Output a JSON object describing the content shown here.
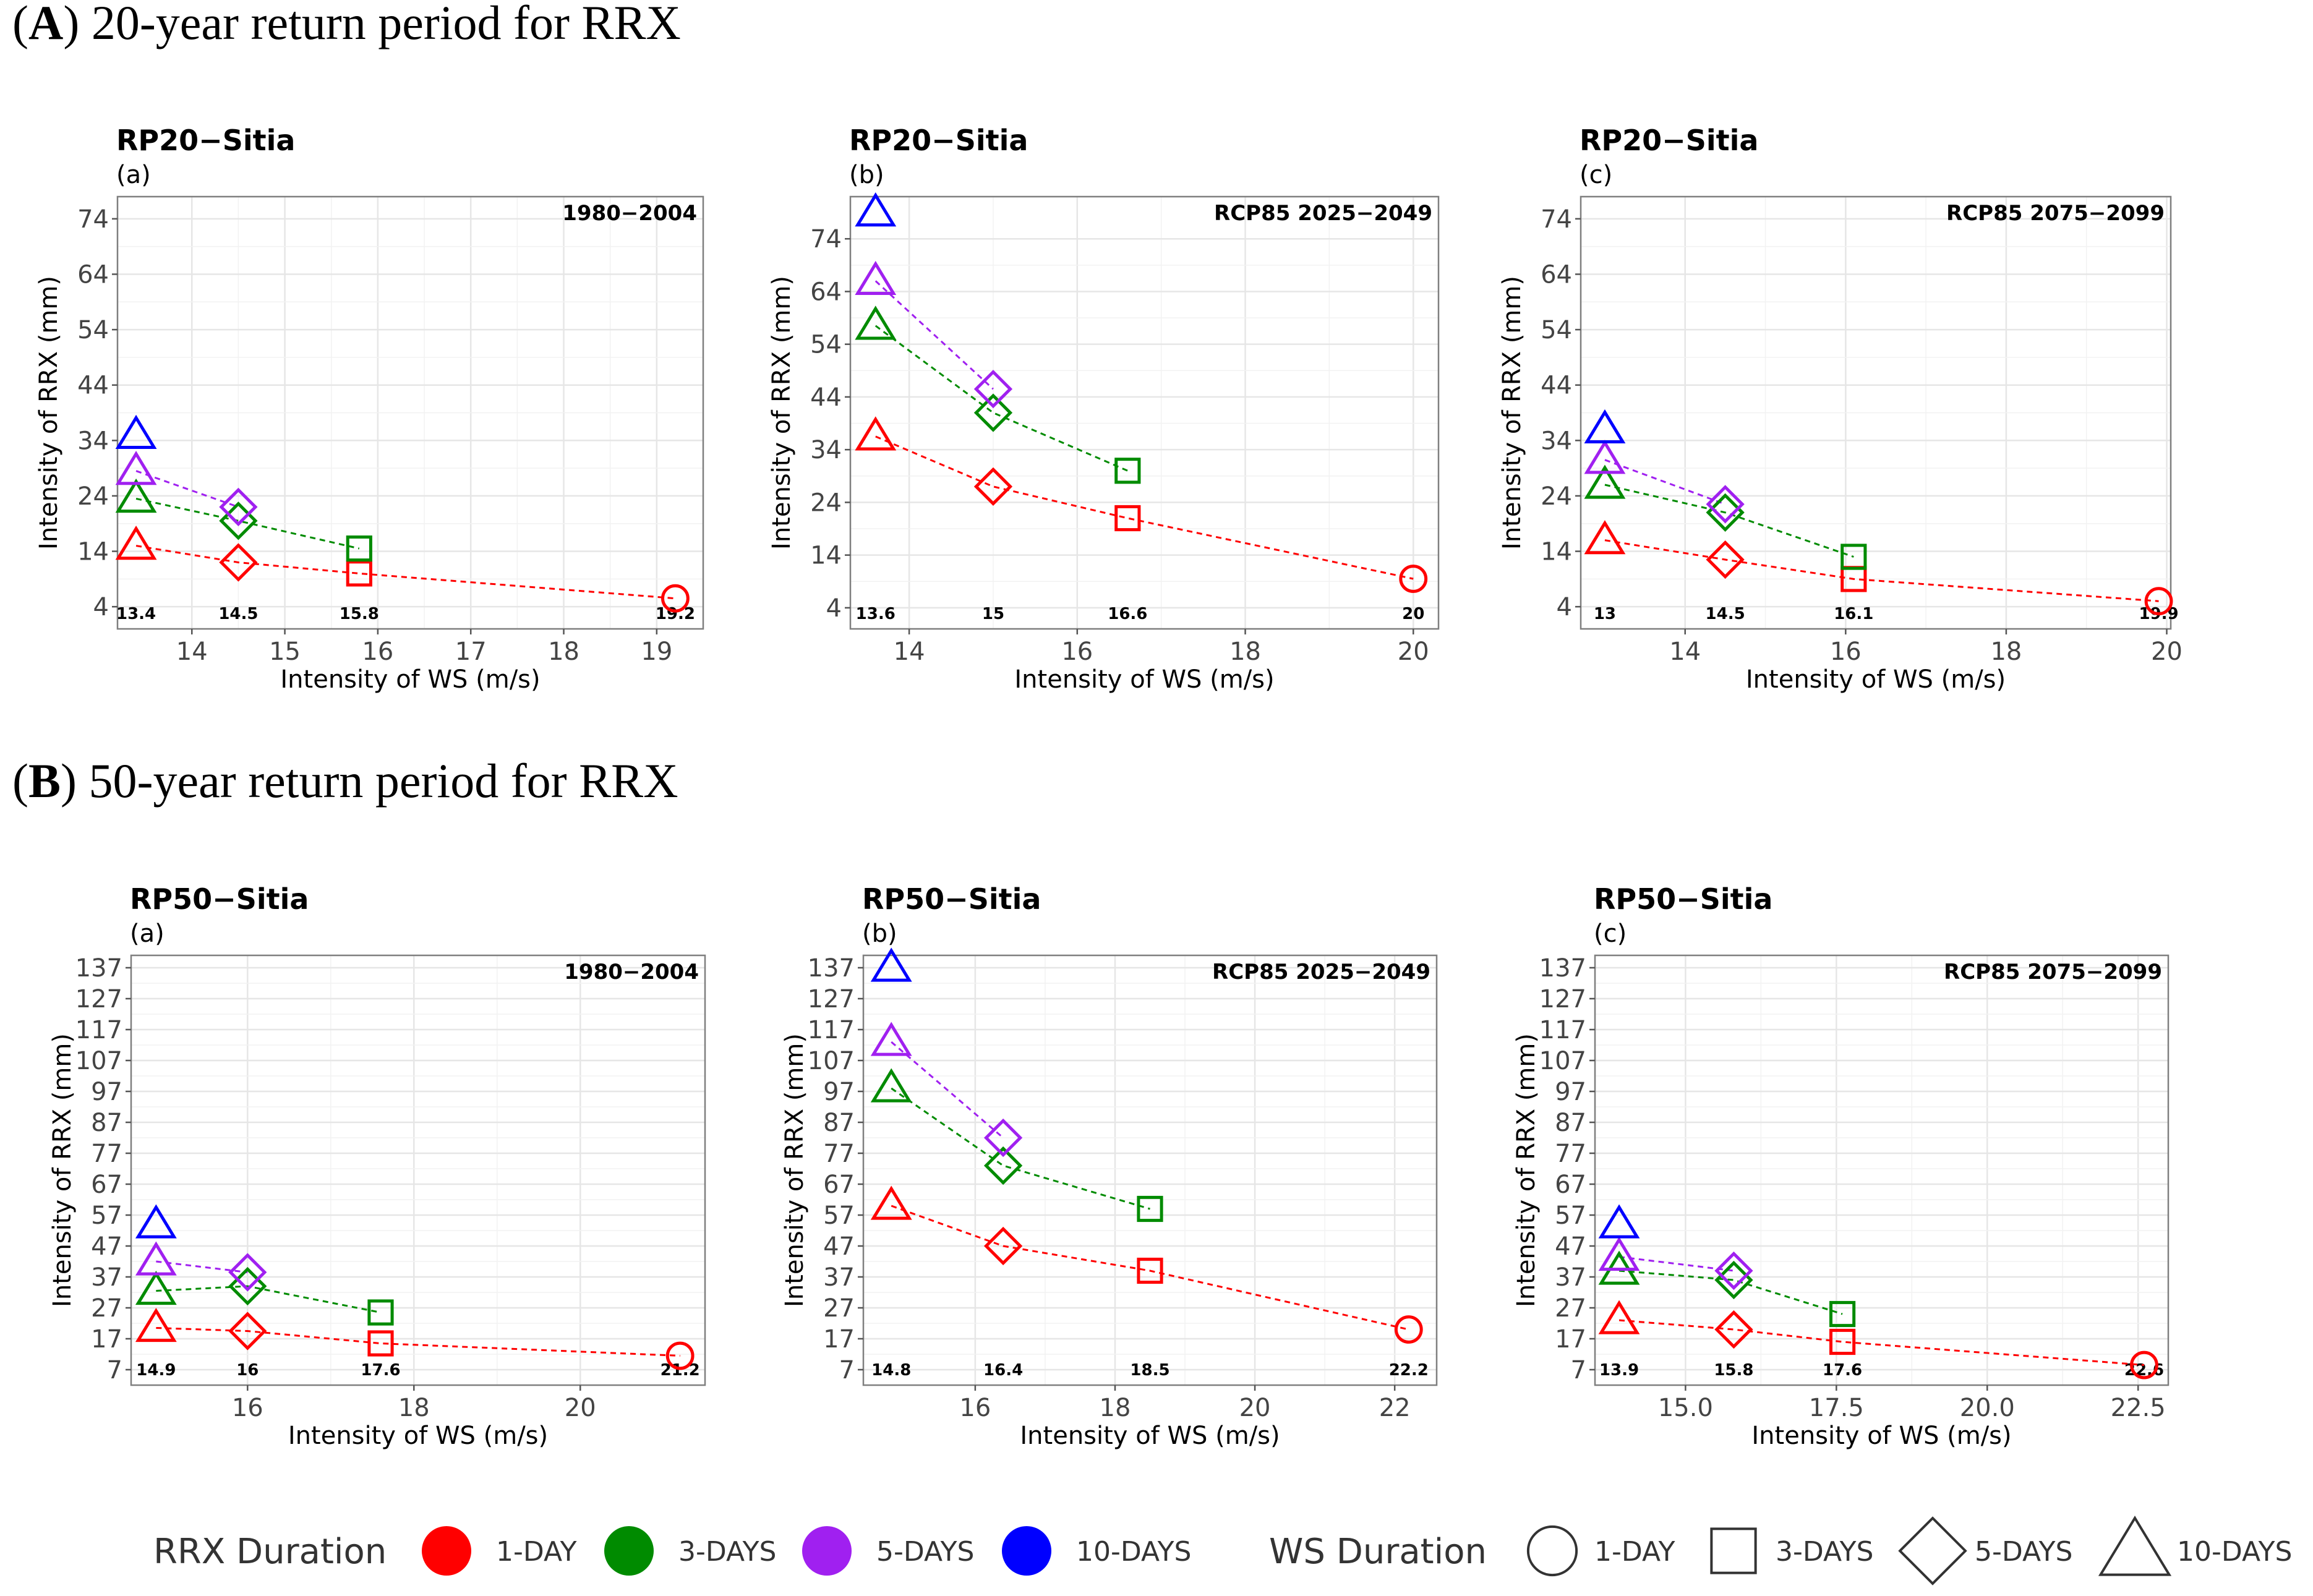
{
  "sections": [
    {
      "letter": "A",
      "text": "20-year return period for RRX"
    },
    {
      "letter": "B",
      "text": "50-year return period for RRX"
    }
  ],
  "colors": {
    "1-DAY": "#ff0000",
    "3-DAYS": "#008b00",
    "5-DAYS": "#a020f0",
    "10-DAYS": "#0000ff"
  },
  "chart_data": [
    {
      "type": "scatter",
      "title": "RP20−Sitia",
      "subtitle": "(a)",
      "period": "1980−2004",
      "xlabel": "Intensity of WS (m/s)",
      "ylabel": "Intensity of RRX (mm)",
      "xlim": [
        13.2,
        19.5
      ],
      "ylim": [
        0,
        78
      ],
      "xticks": [
        14,
        15,
        16,
        17,
        18,
        19
      ],
      "xtick_labels": [
        "14",
        "15",
        "16",
        "17",
        "18",
        "19"
      ],
      "yticks": [
        4,
        14,
        24,
        34,
        44,
        54,
        64,
        74
      ],
      "ws_values": [
        13.4,
        14.5,
        15.8,
        19.2
      ],
      "ws_labels": [
        "13.4",
        "14.5",
        "15.8",
        "19.2"
      ],
      "series": [
        {
          "rrx": "1-DAY",
          "points": [
            {
              "ws_duration": "10-DAYS",
              "x": 13.4,
              "y": 15
            },
            {
              "ws_duration": "5-DAYS",
              "x": 14.5,
              "y": 12
            },
            {
              "ws_duration": "3-DAYS",
              "x": 15.8,
              "y": 10
            },
            {
              "ws_duration": "1-DAY",
              "x": 19.2,
              "y": 5.5
            }
          ]
        },
        {
          "rrx": "3-DAYS",
          "points": [
            {
              "ws_duration": "10-DAYS",
              "x": 13.4,
              "y": 23.5
            },
            {
              "ws_duration": "5-DAYS",
              "x": 14.5,
              "y": 19.5
            },
            {
              "ws_duration": "3-DAYS",
              "x": 15.8,
              "y": 14.5
            }
          ]
        },
        {
          "rrx": "5-DAYS",
          "points": [
            {
              "ws_duration": "10-DAYS",
              "x": 13.4,
              "y": 28.5
            },
            {
              "ws_duration": "5-DAYS",
              "x": 14.5,
              "y": 22
            }
          ]
        },
        {
          "rrx": "10-DAYS",
          "points": [
            {
              "ws_duration": "10-DAYS",
              "x": 13.4,
              "y": 35
            }
          ]
        }
      ]
    },
    {
      "type": "scatter",
      "title": "RP20−Sitia",
      "subtitle": "(b)",
      "period": "RCP85 2025−2049",
      "xlabel": "Intensity of WS (m/s)",
      "ylabel": "Intensity of RRX (mm)",
      "xlim": [
        13.3,
        20.3
      ],
      "ylim": [
        0,
        82
      ],
      "xticks": [
        14,
        16,
        18,
        20
      ],
      "xtick_labels": [
        "14",
        "16",
        "18",
        "20"
      ],
      "yticks": [
        4,
        14,
        24,
        34,
        44,
        54,
        64,
        74
      ],
      "ws_values": [
        13.6,
        15,
        16.6,
        20
      ],
      "ws_labels": [
        "13.6",
        "15",
        "16.6",
        "20"
      ],
      "series": [
        {
          "rrx": "1-DAY",
          "points": [
            {
              "ws_duration": "10-DAYS",
              "x": 13.6,
              "y": 36.5
            },
            {
              "ws_duration": "5-DAYS",
              "x": 15,
              "y": 27
            },
            {
              "ws_duration": "3-DAYS",
              "x": 16.6,
              "y": 21
            },
            {
              "ws_duration": "1-DAY",
              "x": 20,
              "y": 9.5
            }
          ]
        },
        {
          "rrx": "3-DAYS",
          "points": [
            {
              "ws_duration": "10-DAYS",
              "x": 13.6,
              "y": 57.5
            },
            {
              "ws_duration": "5-DAYS",
              "x": 15,
              "y": 41
            },
            {
              "ws_duration": "3-DAYS",
              "x": 16.6,
              "y": 30
            }
          ]
        },
        {
          "rrx": "5-DAYS",
          "points": [
            {
              "ws_duration": "10-DAYS",
              "x": 13.6,
              "y": 66
            },
            {
              "ws_duration": "5-DAYS",
              "x": 15,
              "y": 45.5
            }
          ]
        },
        {
          "rrx": "10-DAYS",
          "points": [
            {
              "ws_duration": "10-DAYS",
              "x": 13.6,
              "y": 79
            }
          ]
        }
      ]
    },
    {
      "type": "scatter",
      "title": "RP20−Sitia",
      "subtitle": "(c)",
      "period": "RCP85 2075−2099",
      "xlabel": "Intensity of WS (m/s)",
      "ylabel": "Intensity of RRX (mm)",
      "xlim": [
        12.7,
        20.05
      ],
      "ylim": [
        0,
        78
      ],
      "xticks": [
        14,
        16,
        18,
        20
      ],
      "xtick_labels": [
        "14",
        "16",
        "18",
        "20"
      ],
      "yticks": [
        4,
        14,
        24,
        34,
        44,
        54,
        64,
        74
      ],
      "ws_values": [
        13,
        14.5,
        16.1,
        19.9
      ],
      "ws_labels": [
        "13",
        "14.5",
        "16.1",
        "19.9"
      ],
      "series": [
        {
          "rrx": "1-DAY",
          "points": [
            {
              "ws_duration": "10-DAYS",
              "x": 13,
              "y": 16
            },
            {
              "ws_duration": "5-DAYS",
              "x": 14.5,
              "y": 12.5
            },
            {
              "ws_duration": "3-DAYS",
              "x": 16.1,
              "y": 9
            },
            {
              "ws_duration": "1-DAY",
              "x": 19.9,
              "y": 5
            }
          ]
        },
        {
          "rrx": "3-DAYS",
          "points": [
            {
              "ws_duration": "10-DAYS",
              "x": 13,
              "y": 26
            },
            {
              "ws_duration": "5-DAYS",
              "x": 14.5,
              "y": 21
            },
            {
              "ws_duration": "3-DAYS",
              "x": 16.1,
              "y": 13
            }
          ]
        },
        {
          "rrx": "5-DAYS",
          "points": [
            {
              "ws_duration": "10-DAYS",
              "x": 13,
              "y": 30.5
            },
            {
              "ws_duration": "5-DAYS",
              "x": 14.5,
              "y": 22.5
            }
          ]
        },
        {
          "rrx": "10-DAYS",
          "points": [
            {
              "ws_duration": "10-DAYS",
              "x": 13,
              "y": 36
            }
          ]
        }
      ]
    },
    {
      "type": "scatter",
      "title": "RP50−Sitia",
      "subtitle": "(a)",
      "period": "1980−2004",
      "xlabel": "Intensity of WS (m/s)",
      "ylabel": "Intensity of RRX (mm)",
      "xlim": [
        14.6,
        21.5
      ],
      "ylim": [
        2,
        141
      ],
      "xticks": [
        16,
        18,
        20
      ],
      "xtick_labels": [
        "16",
        "18",
        "20"
      ],
      "yticks": [
        7,
        17,
        27,
        37,
        47,
        57,
        67,
        77,
        87,
        97,
        107,
        117,
        127,
        137
      ],
      "ws_values": [
        14.9,
        16,
        17.6,
        21.2
      ],
      "ws_labels": [
        "14.9",
        "16",
        "17.6",
        "21.2"
      ],
      "series": [
        {
          "rrx": "1-DAY",
          "points": [
            {
              "ws_duration": "10-DAYS",
              "x": 14.9,
              "y": 20.5
            },
            {
              "ws_duration": "5-DAYS",
              "x": 16,
              "y": 19.5
            },
            {
              "ws_duration": "3-DAYS",
              "x": 17.6,
              "y": 15.5
            },
            {
              "ws_duration": "1-DAY",
              "x": 21.2,
              "y": 11.5
            }
          ]
        },
        {
          "rrx": "3-DAYS",
          "points": [
            {
              "ws_duration": "10-DAYS",
              "x": 14.9,
              "y": 32.5
            },
            {
              "ws_duration": "5-DAYS",
              "x": 16,
              "y": 34
            },
            {
              "ws_duration": "3-DAYS",
              "x": 17.6,
              "y": 25.5
            }
          ]
        },
        {
          "rrx": "5-DAYS",
          "points": [
            {
              "ws_duration": "10-DAYS",
              "x": 14.9,
              "y": 42
            },
            {
              "ws_duration": "5-DAYS",
              "x": 16,
              "y": 38.5
            }
          ]
        },
        {
          "rrx": "10-DAYS",
          "points": [
            {
              "ws_duration": "10-DAYS",
              "x": 14.9,
              "y": 54
            }
          ]
        }
      ]
    },
    {
      "type": "scatter",
      "title": "RP50−Sitia",
      "subtitle": "(b)",
      "period": "RCP85 2025−2049",
      "xlabel": "Intensity of WS (m/s)",
      "ylabel": "Intensity of RRX (mm)",
      "xlim": [
        14.4,
        22.6
      ],
      "ylim": [
        2,
        141
      ],
      "xticks": [
        16,
        18,
        20,
        22
      ],
      "xtick_labels": [
        "16",
        "18",
        "20",
        "22"
      ],
      "yticks": [
        7,
        17,
        27,
        37,
        47,
        57,
        67,
        77,
        87,
        97,
        107,
        117,
        127,
        137
      ],
      "ws_values": [
        14.8,
        16.4,
        18.5,
        22.2
      ],
      "ws_labels": [
        "14.8",
        "16.4",
        "18.5",
        "22.2"
      ],
      "series": [
        {
          "rrx": "1-DAY",
          "points": [
            {
              "ws_duration": "10-DAYS",
              "x": 14.8,
              "y": 60
            },
            {
              "ws_duration": "5-DAYS",
              "x": 16.4,
              "y": 47
            },
            {
              "ws_duration": "3-DAYS",
              "x": 18.5,
              "y": 39
            },
            {
              "ws_duration": "1-DAY",
              "x": 22.2,
              "y": 20
            }
          ]
        },
        {
          "rrx": "3-DAYS",
          "points": [
            {
              "ws_duration": "10-DAYS",
              "x": 14.8,
              "y": 98
            },
            {
              "ws_duration": "5-DAYS",
              "x": 16.4,
              "y": 73
            },
            {
              "ws_duration": "3-DAYS",
              "x": 18.5,
              "y": 59
            }
          ]
        },
        {
          "rrx": "5-DAYS",
          "points": [
            {
              "ws_duration": "10-DAYS",
              "x": 14.8,
              "y": 113
            },
            {
              "ws_duration": "5-DAYS",
              "x": 16.4,
              "y": 82
            }
          ]
        },
        {
          "rrx": "10-DAYS",
          "points": [
            {
              "ws_duration": "10-DAYS",
              "x": 14.8,
              "y": 137
            }
          ]
        }
      ]
    },
    {
      "type": "scatter",
      "title": "RP50−Sitia",
      "subtitle": "(c)",
      "period": "RCP85 2075−2099",
      "xlabel": "Intensity of WS (m/s)",
      "ylabel": "Intensity of RRX (mm)",
      "xlim": [
        13.5,
        23.0
      ],
      "ylim": [
        2,
        141
      ],
      "xticks": [
        15,
        17.5,
        20,
        22.5
      ],
      "xtick_labels": [
        "15.0",
        "17.5",
        "20.0",
        "22.5"
      ],
      "yticks": [
        7,
        17,
        27,
        37,
        47,
        57,
        67,
        77,
        87,
        97,
        107,
        117,
        127,
        137
      ],
      "ws_values": [
        13.9,
        15.8,
        17.6,
        22.6
      ],
      "ws_labels": [
        "13.9",
        "15.8",
        "17.6",
        "22.6"
      ],
      "series": [
        {
          "rrx": "1-DAY",
          "points": [
            {
              "ws_duration": "10-DAYS",
              "x": 13.9,
              "y": 23
            },
            {
              "ws_duration": "5-DAYS",
              "x": 15.8,
              "y": 20
            },
            {
              "ws_duration": "3-DAYS",
              "x": 17.6,
              "y": 16
            },
            {
              "ws_duration": "1-DAY",
              "x": 22.6,
              "y": 8.5
            }
          ]
        },
        {
          "rrx": "3-DAYS",
          "points": [
            {
              "ws_duration": "10-DAYS",
              "x": 13.9,
              "y": 39
            },
            {
              "ws_duration": "5-DAYS",
              "x": 15.8,
              "y": 36
            },
            {
              "ws_duration": "3-DAYS",
              "x": 17.6,
              "y": 25
            }
          ]
        },
        {
          "rrx": "5-DAYS",
          "points": [
            {
              "ws_duration": "10-DAYS",
              "x": 13.9,
              "y": 43.5
            },
            {
              "ws_duration": "5-DAYS",
              "x": 15.8,
              "y": 39
            }
          ]
        },
        {
          "rrx": "10-DAYS",
          "points": [
            {
              "ws_duration": "10-DAYS",
              "x": 13.9,
              "y": 54
            }
          ]
        }
      ]
    }
  ],
  "legend": {
    "rrx_title": "RRX Duration",
    "rrx_items": [
      {
        "label": "1-DAY",
        "color": "#ff0000"
      },
      {
        "label": "3-DAYS",
        "color": "#008b00"
      },
      {
        "label": "5-DAYS",
        "color": "#a020f0"
      },
      {
        "label": "10-DAYS",
        "color": "#0000ff"
      }
    ],
    "ws_title": "WS Duration",
    "ws_items": [
      {
        "label": "1-DAY",
        "shape": "circle"
      },
      {
        "label": "3-DAYS",
        "shape": "square"
      },
      {
        "label": "5-DAYS",
        "shape": "diamond"
      },
      {
        "label": "10-DAYS",
        "shape": "triangle"
      }
    ]
  }
}
